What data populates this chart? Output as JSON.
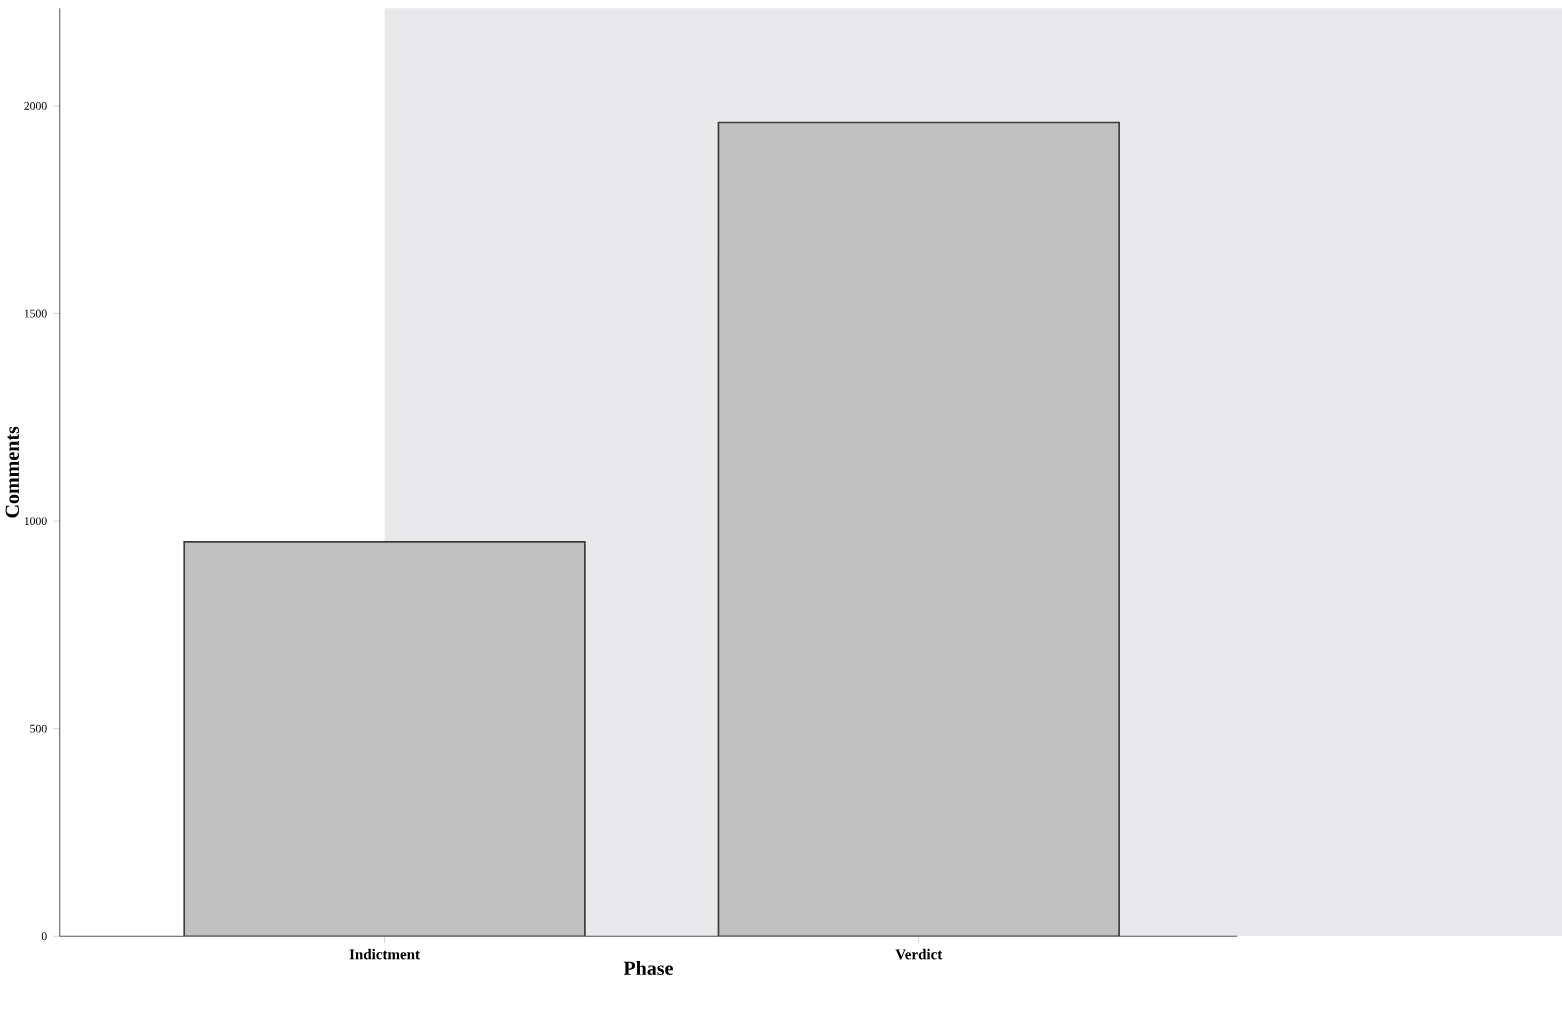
{
  "chart_data": {
    "type": "bar",
    "xlabel": "Phase",
    "ylabel": "Comments",
    "categories": [
      "Indictment",
      "Verdict"
    ],
    "values": [
      950,
      1960
    ],
    "color": "#c0c0c0",
    "ylim": [
      0,
      2235
    ],
    "yticks": [
      0,
      500,
      1000,
      1500,
      2000
    ],
    "grid": false
  }
}
